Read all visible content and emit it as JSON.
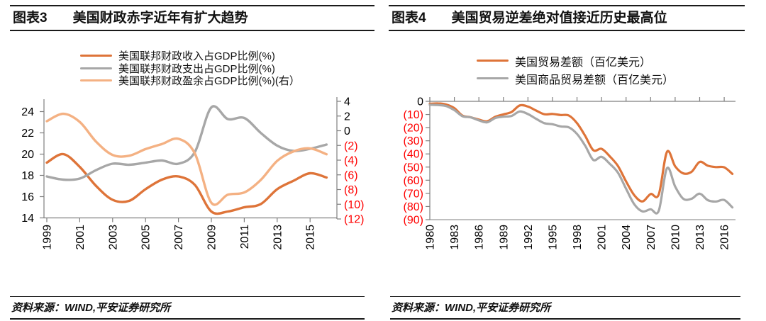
{
  "colors": {
    "orange": "#DE7439",
    "gray": "#A7A7A7",
    "peach": "#F4B183",
    "negative_red": "#FF0000",
    "axis_gray": "#7F7F7F",
    "text_black": "#000000"
  },
  "left_panel": {
    "figure_label": "图表3",
    "title": "美国财政赤字近年有扩大趋势",
    "source": "资料来源：WIND,平安证券研究所"
  },
  "right_panel": {
    "figure_label": "图表4",
    "title": "美国贸易逆差绝对值接近历史最高位",
    "source": "资料来源：WIND,平安证券研究所"
  },
  "chart_data": [
    {
      "type": "line",
      "title": "美国财政赤字近年有扩大趋势",
      "x": [
        1999,
        2000,
        2001,
        2002,
        2003,
        2004,
        2005,
        2006,
        2007,
        2008,
        2009,
        2010,
        2011,
        2012,
        2013,
        2014,
        2015,
        2016
      ],
      "x_tick_years": [
        1999,
        2001,
        2003,
        2005,
        2007,
        2009,
        2011,
        2013,
        2015
      ],
      "left_axis": {
        "min": 14,
        "max": 24,
        "ticks": [
          24,
          22,
          20,
          18,
          16,
          14
        ]
      },
      "right_axis": {
        "min": -12,
        "max": 4,
        "ticks": [
          4,
          2,
          0,
          -2,
          -4,
          -6,
          -8,
          -10,
          -12
        ],
        "negative_format": "parentheses_red"
      },
      "grid": false,
      "smooth": true,
      "legend_position": "top",
      "series": [
        {
          "name": "美国联邦财政收入占GDP比例(%)",
          "axis": "left",
          "color_key": "orange",
          "values": [
            19.2,
            20.0,
            18.8,
            17.0,
            15.7,
            15.6,
            16.7,
            17.6,
            17.9,
            17.1,
            14.6,
            14.6,
            15.0,
            15.3,
            16.7,
            17.5,
            18.2,
            17.8
          ]
        },
        {
          "name": "美国联邦财政支出占GDP比例(%)",
          "axis": "left",
          "color_key": "gray",
          "values": [
            17.9,
            17.6,
            17.7,
            18.5,
            19.1,
            19.0,
            19.2,
            19.4,
            19.1,
            20.2,
            24.4,
            23.3,
            23.4,
            22.0,
            20.8,
            20.3,
            20.5,
            20.9
          ]
        },
        {
          "name": "美国联邦财政盈余占GDP比例(%)(右）",
          "axis": "right",
          "color_key": "peach",
          "values": [
            1.3,
            2.3,
            1.2,
            -1.5,
            -3.3,
            -3.4,
            -2.5,
            -1.8,
            -1.1,
            -3.1,
            -9.8,
            -8.7,
            -8.4,
            -6.7,
            -4.1,
            -2.8,
            -2.4,
            -3.2
          ]
        }
      ]
    },
    {
      "type": "line",
      "title": "美国贸易逆差绝对值接近历史最高位",
      "x": [
        1980,
        1981,
        1982,
        1983,
        1984,
        1985,
        1986,
        1987,
        1988,
        1989,
        1990,
        1991,
        1992,
        1993,
        1994,
        1995,
        1996,
        1997,
        1998,
        1999,
        2000,
        2001,
        2002,
        2003,
        2004,
        2005,
        2006,
        2007,
        2008,
        2009,
        2010,
        2011,
        2012,
        2013,
        2014,
        2015,
        2016,
        2017
      ],
      "x_tick_years": [
        1980,
        1983,
        1986,
        1989,
        1992,
        1995,
        1998,
        2001,
        2004,
        2007,
        2010,
        2013,
        2016
      ],
      "y_axis": {
        "min": -90,
        "max": 0,
        "ticks": [
          0,
          -10,
          -20,
          -30,
          -40,
          -50,
          -60,
          -70,
          -80,
          -90
        ],
        "negative_format": "parentheses_red"
      },
      "grid": false,
      "smooth": true,
      "legend_position": "top",
      "series": [
        {
          "name": "美国贸易差额（百亿美元）",
          "axis": "left",
          "color_key": "orange",
          "values": [
            -1.9,
            -1.6,
            -2.4,
            -5.2,
            -10.9,
            -12.1,
            -13.9,
            -15.2,
            -11.8,
            -9.9,
            -8.1,
            -3.1,
            -4.0,
            -7.0,
            -9.8,
            -9.6,
            -10.4,
            -10.8,
            -16.6,
            -26.3,
            -37.2,
            -36.1,
            -41.8,
            -49.1,
            -60.9,
            -71.4,
            -76.1,
            -70.5,
            -70.8,
            -38.4,
            -49.4,
            -54.8,
            -53.6,
            -46.1,
            -49.0,
            -50.0,
            -50.2,
            -55.2
          ]
        },
        {
          "name": "美国商品贸易差额（百亿美元）",
          "axis": "left",
          "color_key": "gray",
          "values": [
            -2.6,
            -2.8,
            -3.6,
            -6.7,
            -11.3,
            -12.2,
            -14.5,
            -16.0,
            -12.7,
            -11.7,
            -11.1,
            -7.7,
            -9.7,
            -13.3,
            -16.6,
            -17.4,
            -19.1,
            -19.8,
            -24.8,
            -33.8,
            -44.6,
            -42.2,
            -47.5,
            -54.2,
            -66.5,
            -78.3,
            -83.7,
            -82.1,
            -83.2,
            -50.9,
            -64.8,
            -74.1,
            -74.1,
            -70.2,
            -75.2,
            -76.2,
            -75.0,
            -80.7
          ]
        }
      ]
    }
  ]
}
